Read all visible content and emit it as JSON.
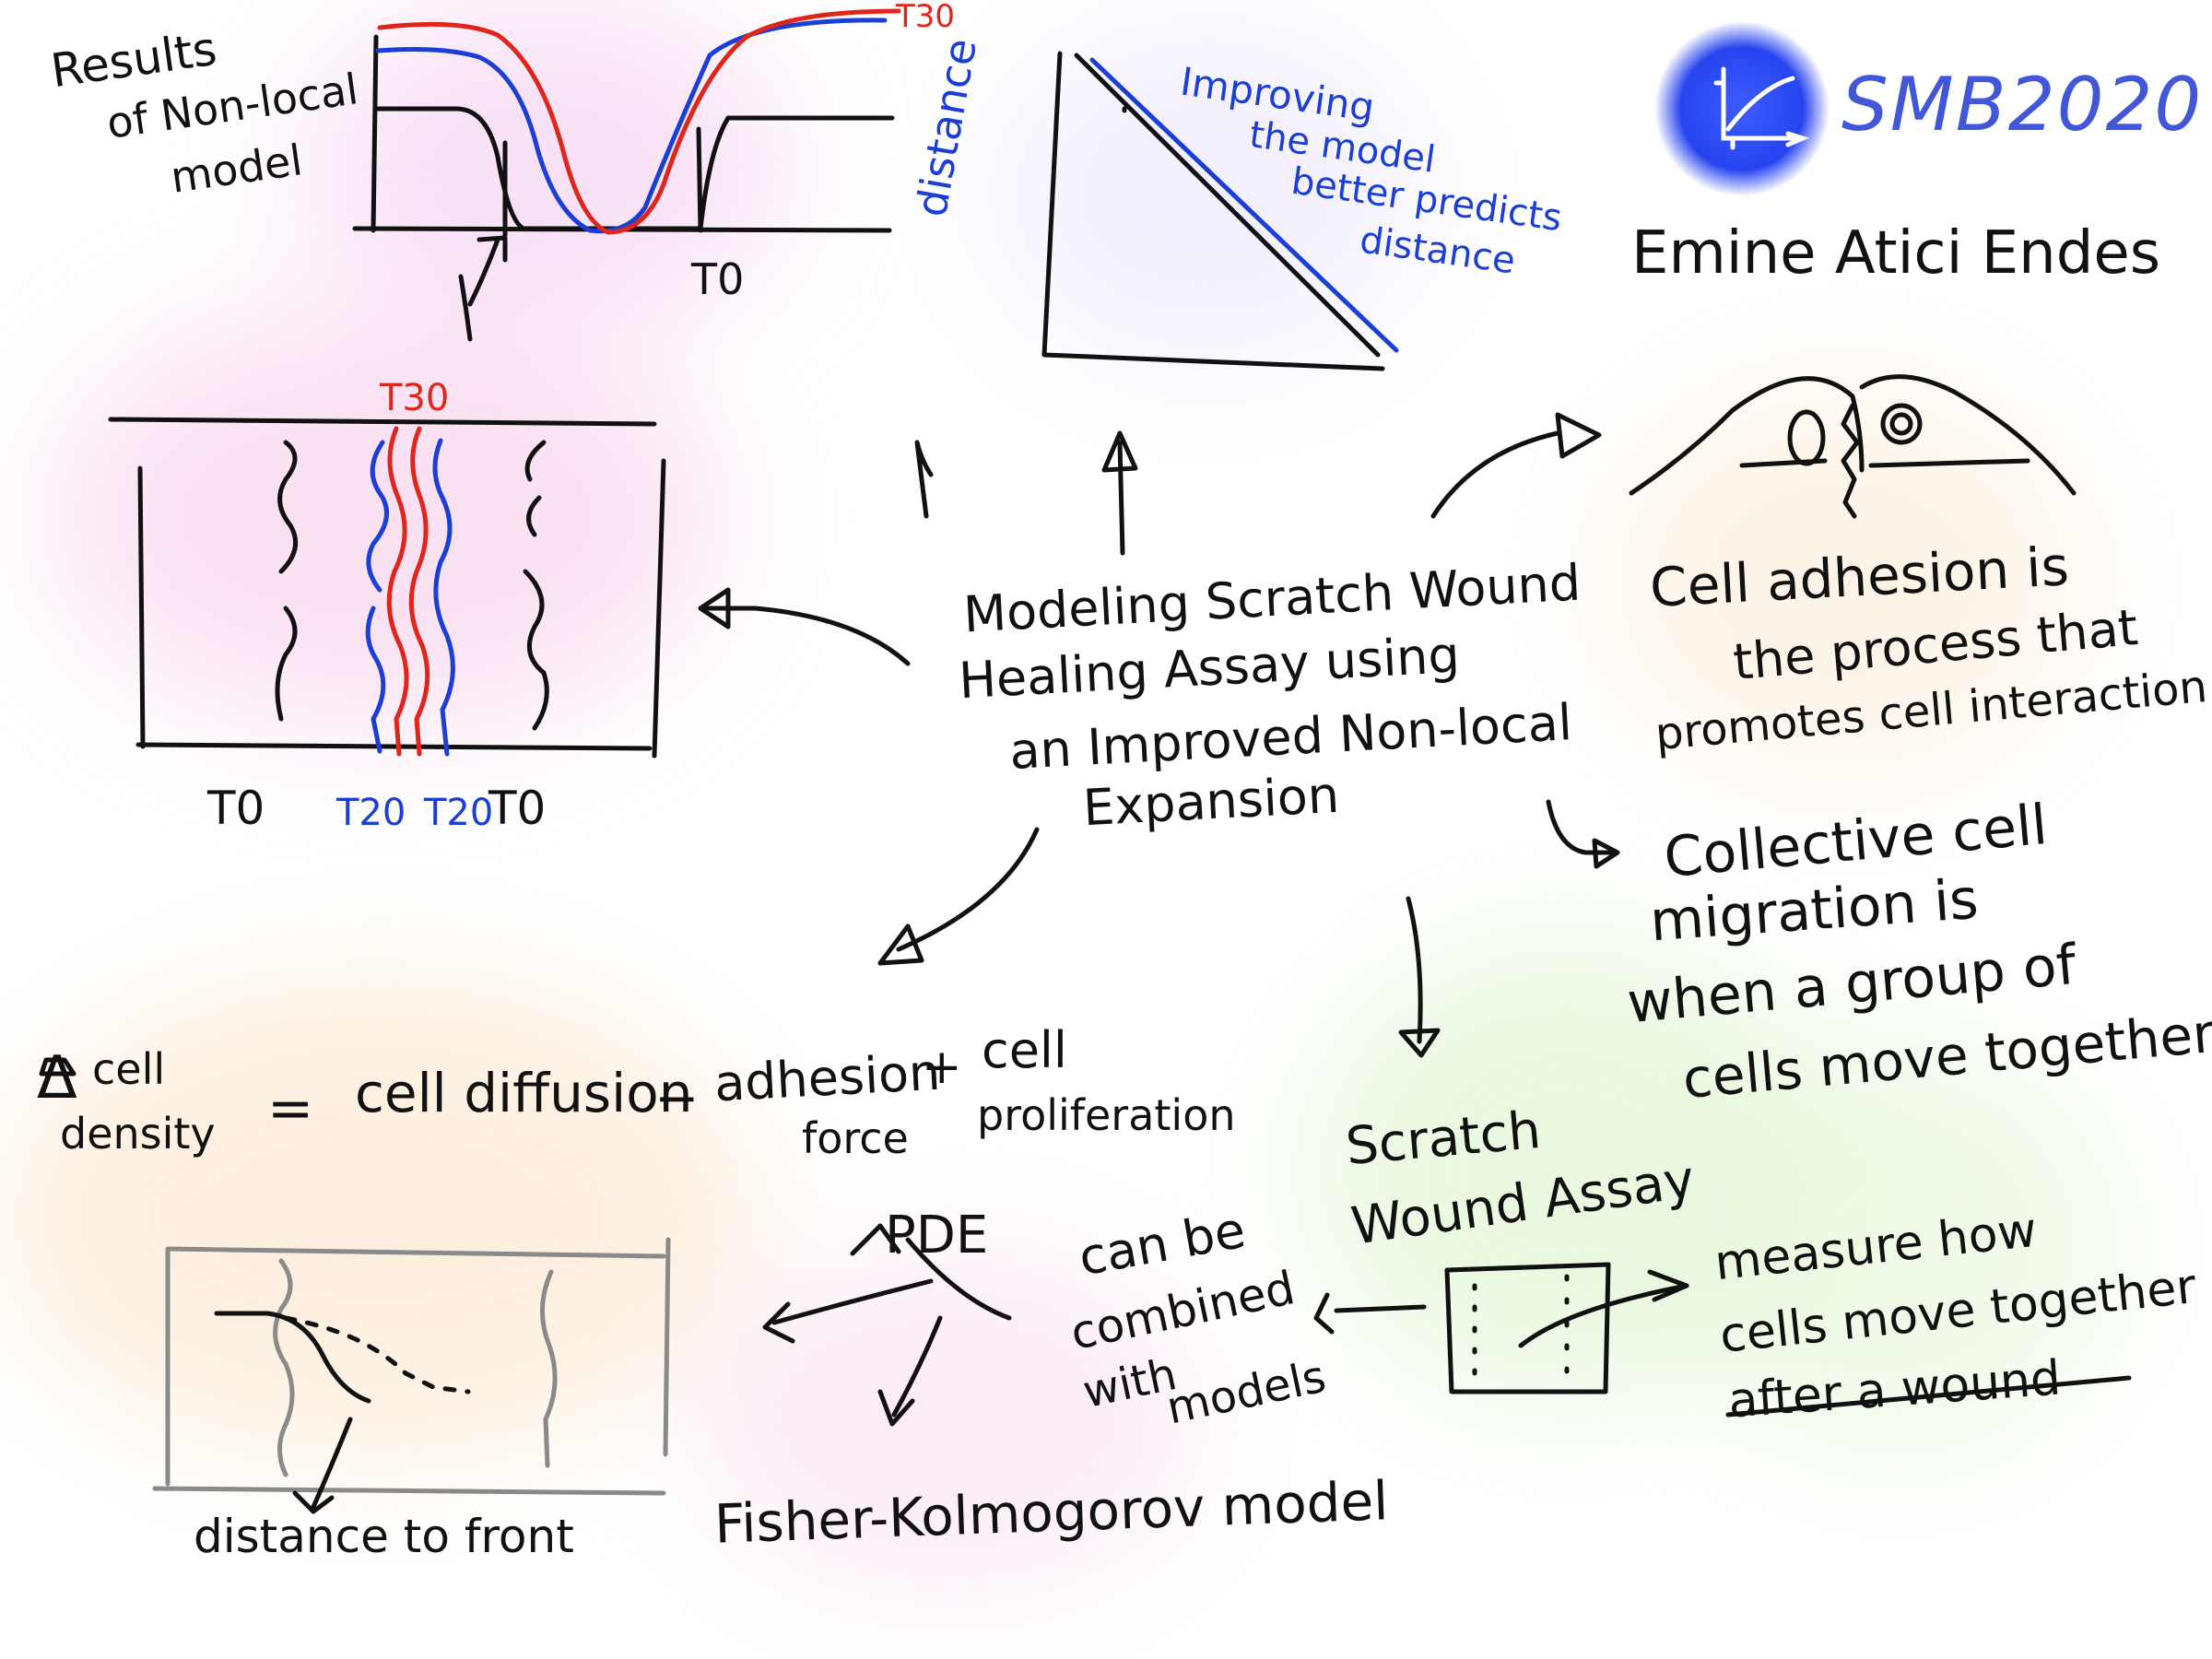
{
  "colors": {
    "ink": "#111111",
    "blue": "#1b3fd6",
    "red": "#e0251b",
    "logo_blue": "#2744f0",
    "gray": "#8a8a8a"
  },
  "header": {
    "logo_text": "SMB2020",
    "presenter": "Emine Atici Endes"
  },
  "center_title": [
    "Modeling Scratch Wound",
    "Healing Assay using",
    "an Improved Non-local",
    "Expansion"
  ],
  "results": {
    "title": [
      "Results",
      "of Non-local",
      "model"
    ],
    "t30_label": "T30",
    "t0_label": "T0"
  },
  "distance_plot": {
    "ylabel": "distance",
    "note": [
      "Improving",
      "the model",
      "better predicts",
      "distance"
    ]
  },
  "wound_diagram": {
    "top_label": "T30",
    "bottom_labels": [
      "T0",
      "T20",
      "T20",
      "T0"
    ]
  },
  "adhesion": {
    "text": [
      "Cell adhesion is",
      "the process that",
      "promotes cell interaction"
    ]
  },
  "collective": {
    "text": [
      "Collective cell",
      "migration is",
      "when a group of",
      "cells move together"
    ]
  },
  "equation": {
    "lhs_symbol": "Δ",
    "lhs_top": "cell",
    "lhs_bottom": "density",
    "equals": "=",
    "term1": "cell diffusion",
    "minus": "−",
    "term2_top": "adhesion",
    "term2_bottom": "force",
    "plus": "+",
    "term3_top": "cell",
    "term3_bottom": "proliferation"
  },
  "front_plot": {
    "label": "distance to front"
  },
  "pde": {
    "label": "PDE",
    "combined": [
      "can be",
      "combined",
      "with",
      "models"
    ],
    "model": "Fisher-Kolmogorov model"
  },
  "scratch_assay": {
    "title": [
      "Scratch",
      "Wound Assay"
    ],
    "desc": [
      "measure how",
      "cells move together",
      "after a wound"
    ]
  }
}
